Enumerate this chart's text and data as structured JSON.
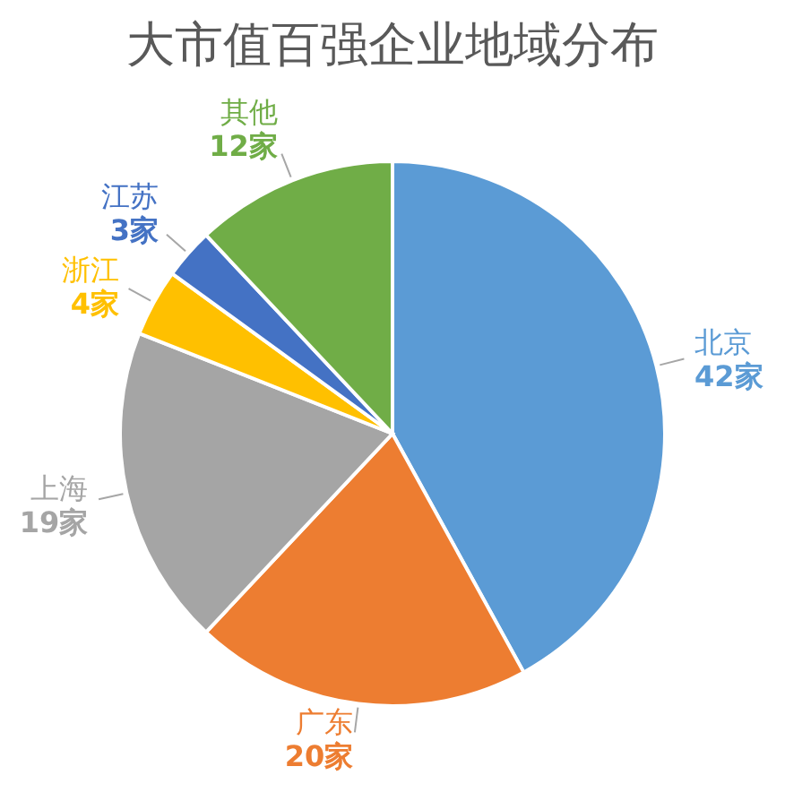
{
  "chart_data": {
    "type": "pie",
    "title": "大市值百强企业地域分布",
    "categories": [
      "北京",
      "广东",
      "上海",
      "浙江",
      "江苏",
      "其他"
    ],
    "values": [
      42,
      20,
      19,
      4,
      3,
      12
    ],
    "value_labels": [
      "42家",
      "20家",
      "19家",
      "4家",
      "3家",
      "12家"
    ],
    "colors": [
      "#5b9bd5",
      "#ed7d31",
      "#a5a5a5",
      "#ffc000",
      "#4472c4",
      "#70ad47"
    ]
  }
}
